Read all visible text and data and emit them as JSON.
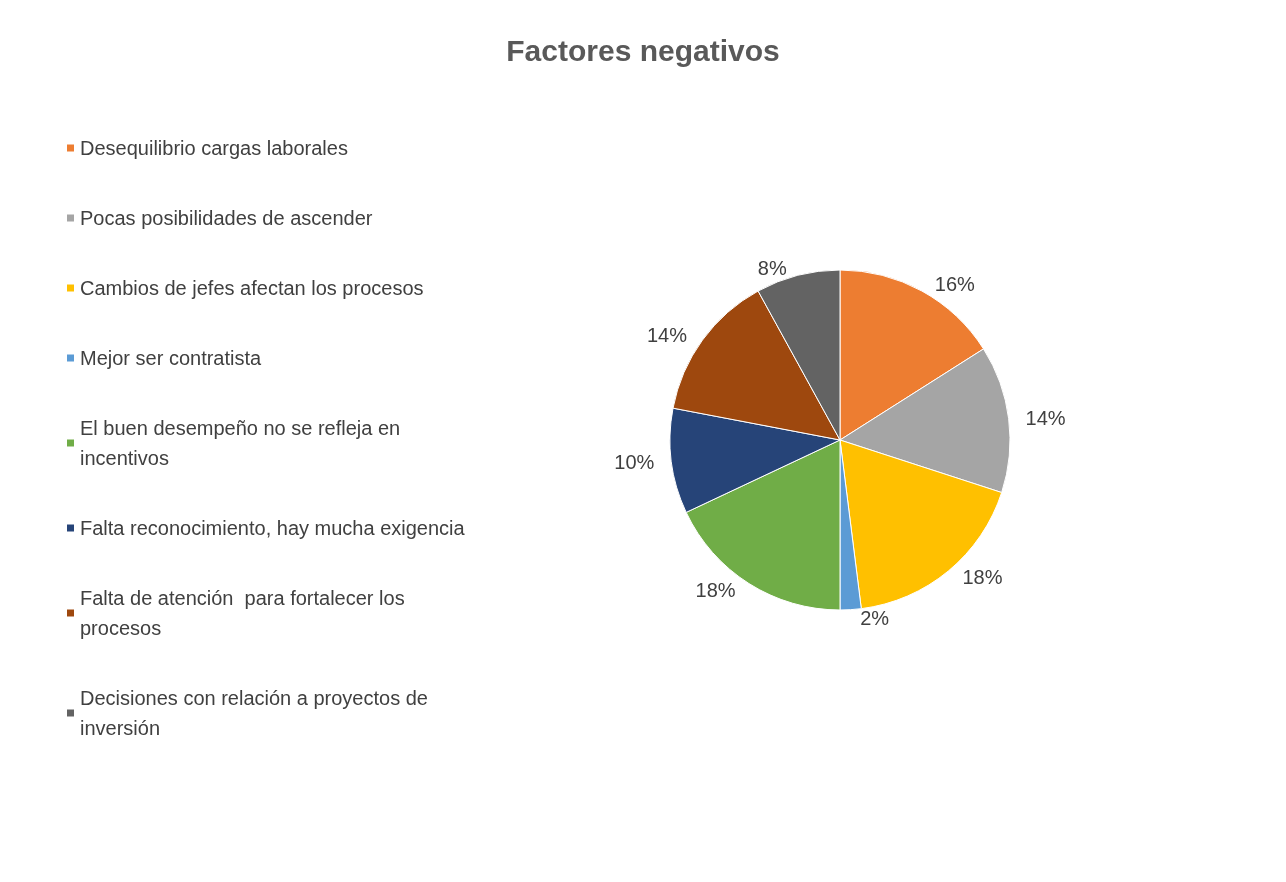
{
  "chart_data": {
    "type": "pie",
    "title": "Factores negativos",
    "categories": [
      "Desequilibrio cargas laborales",
      "Pocas posibilidades de ascender",
      "Cambios de jefes afectan los procesos",
      "Mejor ser contratista",
      "El buen desempeño no se refleja en incentivos",
      "Falta reconocimiento, hay mucha exigencia",
      "Falta de atención  para fortalecer los procesos",
      "Decisiones con relación a proyectos de inversión"
    ],
    "values": [
      16,
      14,
      18,
      2,
      18,
      10,
      14,
      8
    ],
    "value_labels": [
      "16%",
      "14%",
      "18%",
      "2%",
      "18%",
      "10%",
      "14%",
      "8%"
    ],
    "colors": [
      "#ed7d31",
      "#a5a5a5",
      "#ffc000",
      "#5b9bd5",
      "#70ad47",
      "#264478",
      "#9e480e",
      "#636363"
    ],
    "legend": "left"
  }
}
